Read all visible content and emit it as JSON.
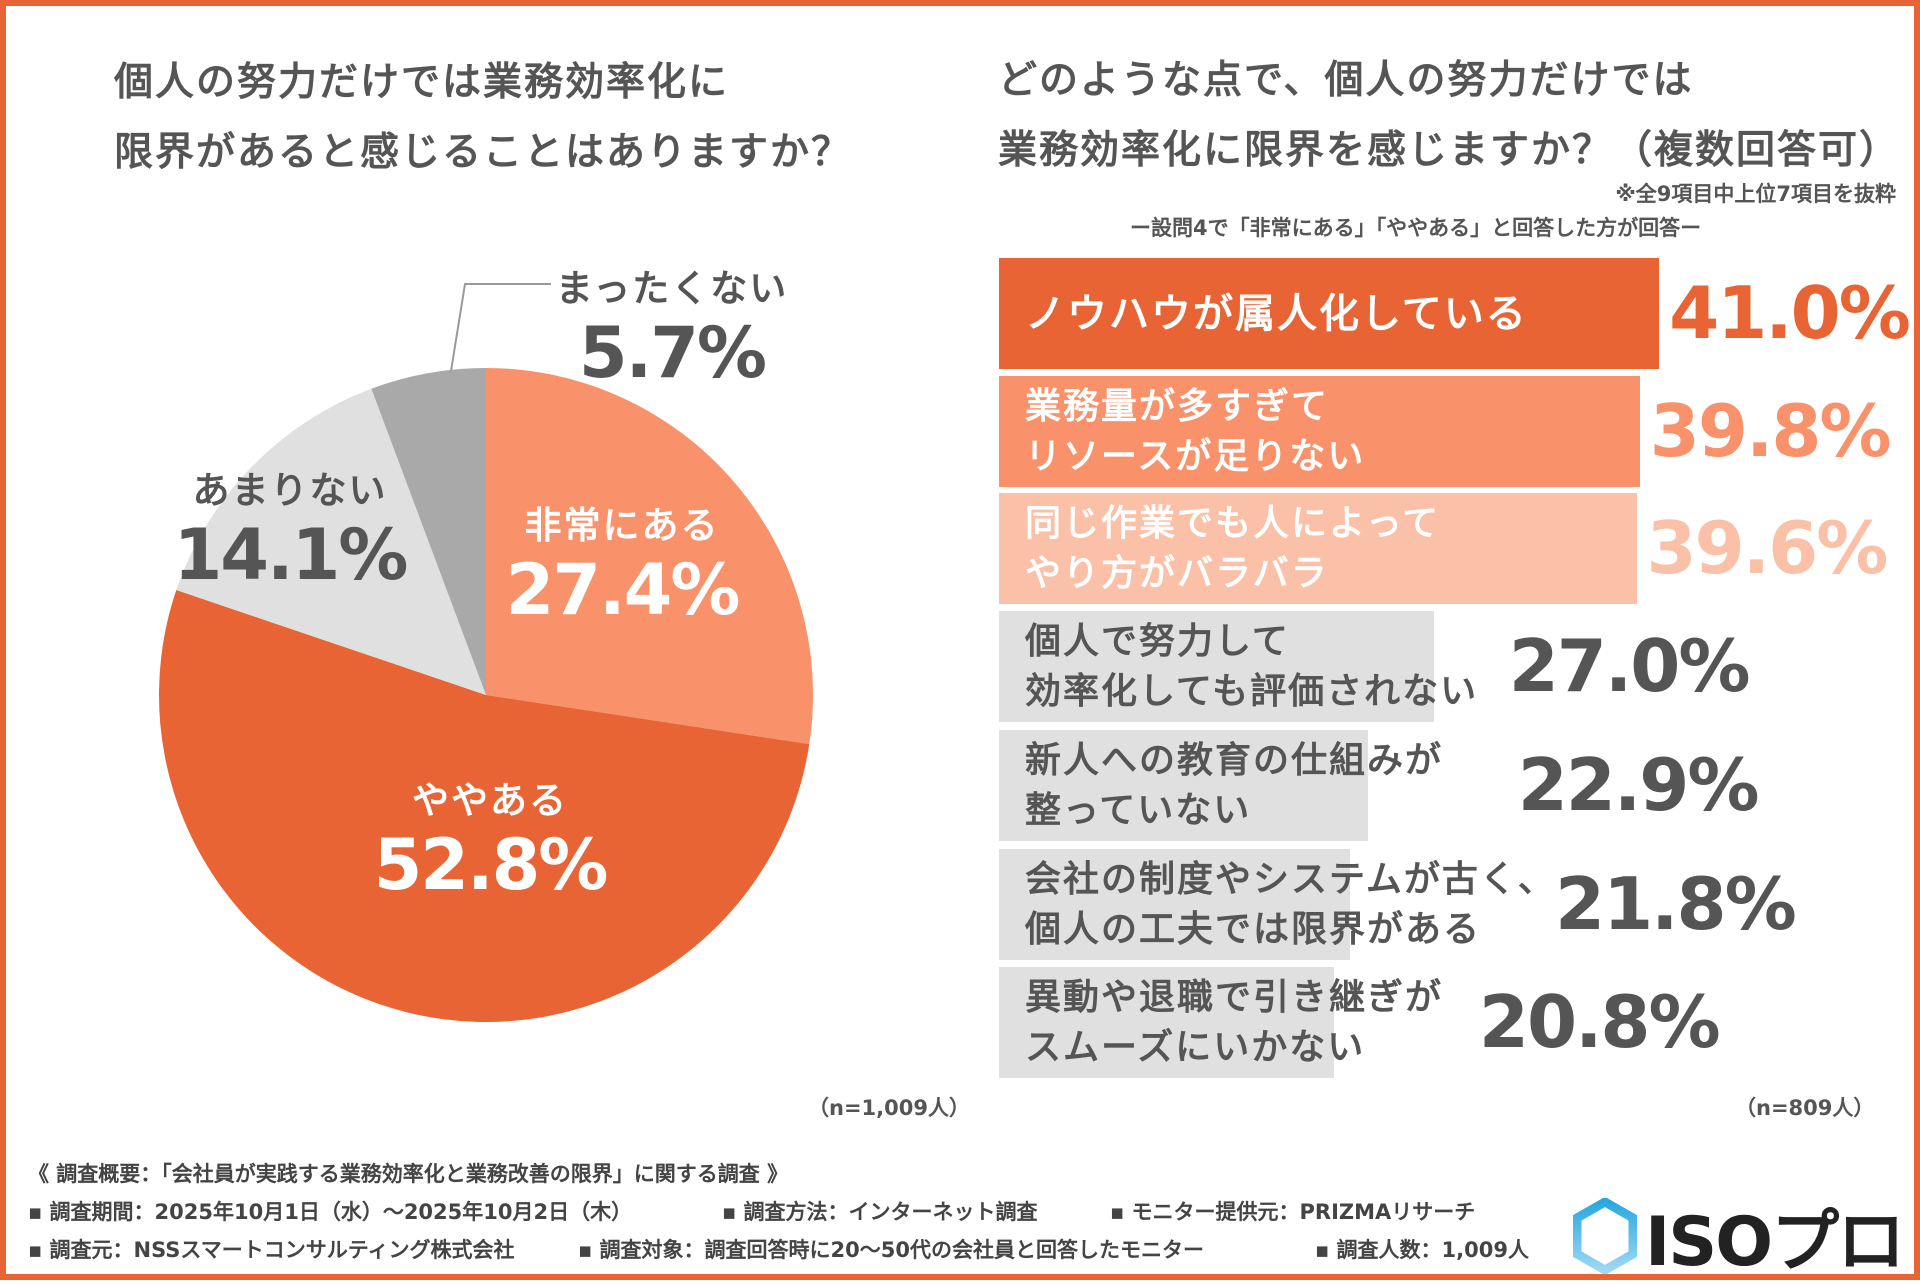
{
  "colors": {
    "accent": "#E86434",
    "light": "#F9916A",
    "lighter": "#FBC0A8",
    "grey": "#E0E0E0",
    "darkgrey": "#A9A9A9",
    "text": "#555555"
  },
  "chart_data": [
    {
      "type": "pie",
      "title": "個人の努力だけでは業務効率化に\n限界があると感じることはありますか？",
      "title_lines": [
        "個人の努力だけでは業務効率化に",
        "限界があると感じることはありますか？"
      ],
      "slices": [
        {
          "label": "非常にある",
          "value": 27.4,
          "value_label": "27.4%",
          "color": "#F9916A"
        },
        {
          "label": "ややある",
          "value": 52.8,
          "value_label": "52.8%",
          "color": "#E86434"
        },
        {
          "label": "あまりない",
          "value": 14.1,
          "value_label": "14.1%",
          "color": "#E0E0E0"
        },
        {
          "label": "まったくない",
          "value": 5.7,
          "value_label": "5.7%",
          "color": "#A9A9A9"
        }
      ],
      "sample": "（n=1,009人）"
    },
    {
      "type": "bar",
      "orientation": "horizontal",
      "title_lines": [
        "どのような点で、個人の努力だけでは",
        "業務効率化に限界を感じますか？（複数回答可）"
      ],
      "notes": [
        "※全9項目中上位7項目を抜粋",
        "ー設問4で「非常にある」「ややある」と回答した方が回答ー"
      ],
      "categories": [
        "ノウハウが属人化している",
        "業務量が多すぎて\nリソースが足りない",
        "同じ作業でも人によって\nやり方がバラバラ",
        "個人で努力して\n効率化しても評価されない",
        "新人への教育の仕組みが\n整っていない",
        "会社の制度やシステムが古く、\n個人の工夫では限界がある",
        "異動や退職で引き継ぎが\nスムーズにいかない"
      ],
      "values": [
        41.0,
        39.8,
        39.6,
        27.0,
        22.9,
        21.8,
        20.8
      ],
      "value_labels": [
        "41.0%",
        "39.8%",
        "39.6%",
        "27.0%",
        "22.9%",
        "21.8%",
        "20.8%"
      ],
      "unit": "%",
      "sample": "（n=809人）"
    }
  ],
  "footer": {
    "summary": "《 調査概要：「会社員が実践する業務効率化と業務改善の限界」に関する調査 》",
    "period": "▪ 調査期間：2025年10月1日（水）〜2025年10月2日（木）",
    "method": "▪ 調査方法：インターネット調査",
    "provider": "▪ モニター提供元：PRIZMAリサーチ",
    "organizer": "▪ 調査元：NSSスマートコンサルティング株式会社",
    "target": "▪ 調査対象：調査回答時に20〜50代の会社員と回答したモニター",
    "count": "▪ 調査人数：1,009人"
  },
  "logo": {
    "text": "ISOプロ",
    "icon": "hexagon-icon"
  }
}
